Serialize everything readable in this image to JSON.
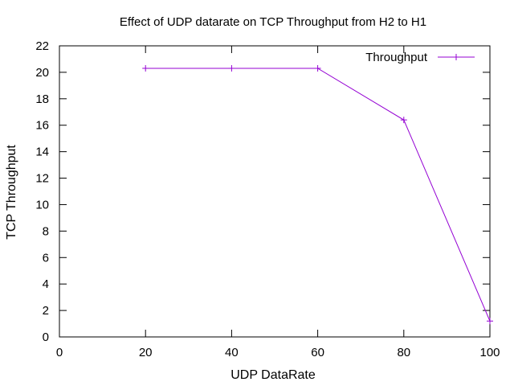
{
  "chart_data": {
    "type": "line",
    "title": "Effect of UDP datarate on TCP Throughput from H2 to H1",
    "xlabel": "UDP DataRate",
    "ylabel": "TCP Throughput",
    "xlim": [
      0,
      100
    ],
    "ylim": [
      0,
      22
    ],
    "xticks": [
      0,
      20,
      40,
      60,
      80,
      100
    ],
    "yticks": [
      0,
      2,
      4,
      6,
      8,
      10,
      12,
      14,
      16,
      18,
      20,
      22
    ],
    "grid": false,
    "legend_position": "top-right",
    "series": [
      {
        "name": "Throughput",
        "color": "#9400d3",
        "marker": "plus",
        "x": [
          20,
          40,
          60,
          80,
          100
        ],
        "y": [
          20.3,
          20.3,
          20.3,
          16.4,
          1.2
        ]
      }
    ]
  }
}
